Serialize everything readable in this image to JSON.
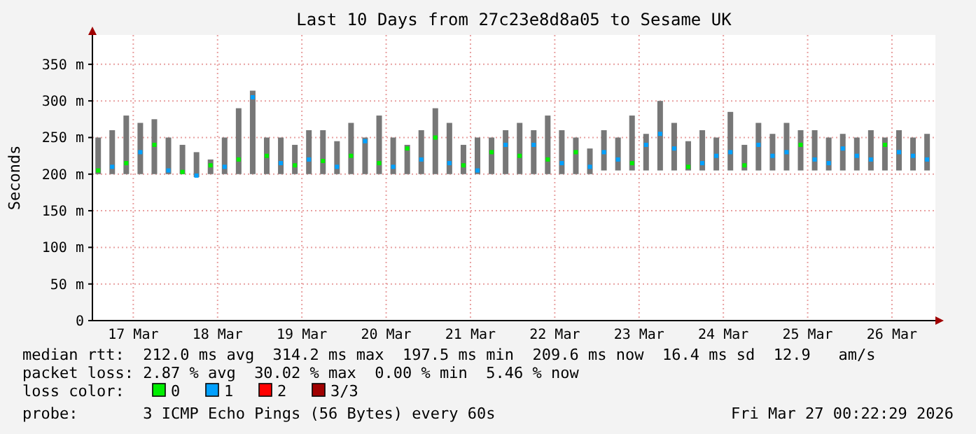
{
  "chart_data": {
    "type": "scatter",
    "title": "Last 10 Days from 27c23e8d8a05 to Sesame UK",
    "ylabel": "Seconds",
    "x": [
      "2026-03-17T02:00",
      "2026-03-17T06:00",
      "2026-03-17T10:00",
      "2026-03-17T14:00",
      "2026-03-17T18:00",
      "2026-03-17T22:00",
      "2026-03-18T02:00",
      "2026-03-18T06:00",
      "2026-03-18T10:00",
      "2026-03-18T14:00",
      "2026-03-18T18:00",
      "2026-03-18T22:00",
      "2026-03-19T02:00",
      "2026-03-19T06:00",
      "2026-03-19T10:00",
      "2026-03-19T14:00",
      "2026-03-19T18:00",
      "2026-03-19T22:00",
      "2026-03-20T02:00",
      "2026-03-20T06:00",
      "2026-03-20T10:00",
      "2026-03-20T14:00",
      "2026-03-20T18:00",
      "2026-03-20T22:00",
      "2026-03-21T02:00",
      "2026-03-21T06:00",
      "2026-03-21T10:00",
      "2026-03-21T14:00",
      "2026-03-21T18:00",
      "2026-03-21T22:00",
      "2026-03-22T02:00",
      "2026-03-22T06:00",
      "2026-03-22T10:00",
      "2026-03-22T14:00",
      "2026-03-22T18:00",
      "2026-03-22T22:00",
      "2026-03-23T02:00",
      "2026-03-23T06:00",
      "2026-03-23T10:00",
      "2026-03-23T14:00",
      "2026-03-23T18:00",
      "2026-03-23T22:00",
      "2026-03-24T02:00",
      "2026-03-24T06:00",
      "2026-03-24T10:00",
      "2026-03-24T14:00",
      "2026-03-24T18:00",
      "2026-03-24T22:00",
      "2026-03-25T02:00",
      "2026-03-25T06:00",
      "2026-03-25T10:00",
      "2026-03-25T14:00",
      "2026-03-25T18:00",
      "2026-03-25T22:00",
      "2026-03-26T02:00",
      "2026-03-26T06:00",
      "2026-03-26T10:00",
      "2026-03-26T14:00",
      "2026-03-26T18:00",
      "2026-03-26T22:00"
    ],
    "series": [
      {
        "type": "bar",
        "color": "#777777",
        "base": [
          200,
          200,
          200,
          200,
          200,
          200,
          200,
          196,
          200,
          200,
          200,
          200,
          200,
          200,
          200,
          200,
          200,
          200,
          200,
          200,
          200,
          200,
          200,
          200,
          200,
          200,
          200,
          200,
          200,
          200,
          200,
          200,
          200,
          200,
          200,
          200,
          205,
          205,
          205,
          205,
          205,
          205,
          205,
          205,
          205,
          205,
          205,
          205,
          205,
          205,
          205,
          205,
          205,
          205,
          205,
          205,
          205,
          205,
          205,
          205
        ],
        "values": [
          50,
          60,
          80,
          70,
          75,
          50,
          40,
          34,
          20,
          50,
          90,
          114,
          50,
          50,
          40,
          60,
          60,
          45,
          70,
          50,
          80,
          50,
          40,
          60,
          90,
          70,
          40,
          50,
          50,
          60,
          70,
          60,
          80,
          60,
          50,
          35,
          55,
          45,
          75,
          50,
          95,
          65,
          40,
          55,
          45,
          80,
          35,
          65,
          50,
          65,
          55,
          55,
          45,
          50,
          45,
          55,
          45,
          55,
          45,
          50
        ]
      },
      {
        "name": "0",
        "color": "#00ee00",
        "values": [
          205,
          null,
          215,
          null,
          240,
          null,
          203,
          null,
          212,
          null,
          220,
          null,
          225,
          null,
          212,
          null,
          218,
          null,
          225,
          null,
          215,
          null,
          235,
          null,
          250,
          null,
          212,
          null,
          230,
          null,
          225,
          null,
          220,
          null,
          230,
          null,
          null,
          null,
          215,
          null,
          null,
          null,
          210,
          null,
          null,
          null,
          212,
          null,
          null,
          null,
          240,
          null,
          null,
          null,
          null,
          null,
          240,
          null,
          null,
          null
        ]
      },
      {
        "name": "1",
        "color": "#00a0ff",
        "values": [
          null,
          210,
          null,
          230,
          null,
          205,
          null,
          198,
          null,
          210,
          null,
          305,
          null,
          215,
          null,
          220,
          null,
          210,
          null,
          245,
          null,
          210,
          null,
          220,
          null,
          215,
          null,
          205,
          null,
          240,
          null,
          240,
          null,
          215,
          null,
          210,
          230,
          220,
          null,
          240,
          255,
          235,
          null,
          215,
          225,
          230,
          null,
          240,
          225,
          230,
          null,
          220,
          215,
          235,
          225,
          220,
          null,
          230,
          225,
          220
        ]
      },
      {
        "name": "2",
        "color": "#ff0000",
        "values": [
          null,
          null,
          null,
          null,
          null,
          null,
          null,
          null,
          null,
          null,
          null,
          null,
          null,
          null,
          null,
          null,
          null,
          null,
          null,
          null,
          null,
          null,
          null,
          null,
          null,
          null,
          null,
          null,
          null,
          null,
          null,
          null,
          null,
          null,
          null,
          null,
          null,
          null,
          null,
          null,
          null,
          null,
          null,
          null,
          null,
          null,
          null,
          null,
          null,
          null,
          null,
          null,
          null,
          null,
          null,
          null,
          null,
          null,
          null,
          null
        ]
      },
      {
        "name": "3/3",
        "color": "#a00000",
        "values": [
          null,
          null,
          null,
          null,
          null,
          null,
          null,
          null,
          null,
          null,
          null,
          null,
          null,
          null,
          null,
          null,
          null,
          null,
          null,
          null,
          null,
          null,
          null,
          null,
          null,
          null,
          null,
          null,
          null,
          null,
          null,
          null,
          null,
          null,
          null,
          null,
          null,
          null,
          null,
          null,
          null,
          null,
          null,
          null,
          null,
          null,
          null,
          null,
          null,
          null,
          null,
          null,
          null,
          null,
          null,
          null,
          null,
          null,
          null,
          null
        ]
      }
    ],
    "marker": "square",
    "legend": "bottom",
    "legend_title": "loss color:",
    "grid": true,
    "xlim": [
      "2026-03-17T00:22",
      "2026-03-27T00:22"
    ],
    "xticks": [
      {
        "value": "2026-03-17T12:00",
        "label": "17 Mar"
      },
      {
        "value": "2026-03-18T12:00",
        "label": "18 Mar"
      },
      {
        "value": "2026-03-19T12:00",
        "label": "19 Mar"
      },
      {
        "value": "2026-03-20T12:00",
        "label": "20 Mar"
      },
      {
        "value": "2026-03-21T12:00",
        "label": "21 Mar"
      },
      {
        "value": "2026-03-22T12:00",
        "label": "22 Mar"
      },
      {
        "value": "2026-03-23T12:00",
        "label": "23 Mar"
      },
      {
        "value": "2026-03-24T12:00",
        "label": "24 Mar"
      },
      {
        "value": "2026-03-25T12:00",
        "label": "25 Mar"
      },
      {
        "value": "2026-03-26T12:00",
        "label": "26 Mar"
      }
    ],
    "ylim": [
      0,
      390
    ],
    "yticks": [
      0,
      {
        "value": 50,
        "label": "50 m"
      },
      {
        "value": 100,
        "label": "100 m"
      },
      {
        "value": 150,
        "label": "150 m"
      },
      {
        "value": 200,
        "label": "200 m"
      },
      {
        "value": 250,
        "label": "250 m"
      },
      {
        "value": 300,
        "label": "300 m"
      },
      {
        "value": 350,
        "label": "350 m"
      }
    ],
    "annotations": [
      "median rtt:  212.0 ms avg  314.2 ms max  197.5 ms min  209.6 ms now  16.4 ms sd  12.9   am/s",
      "packet loss: 2.87 % avg  30.02 % max  0.00 % min  5.46 % now",
      "probe:       3 ICMP Echo Pings (56 Bytes) every 60s",
      "Fri Mar 27 00:22:29 2026"
    ]
  }
}
